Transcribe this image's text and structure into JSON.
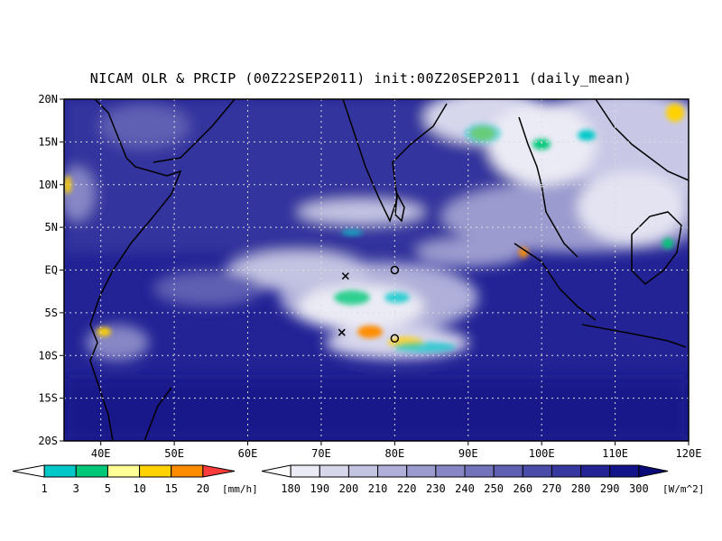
{
  "title": "NICAM OLR & PRCIP (00Z22SEP2011) init:00Z20SEP2011 (daily_mean)",
  "map": {
    "lon_range": [
      35,
      120
    ],
    "lat_range": [
      -20,
      20
    ],
    "lon_ticks": [
      {
        "value": 40,
        "label": "40E"
      },
      {
        "value": 50,
        "label": "50E"
      },
      {
        "value": 60,
        "label": "60E"
      },
      {
        "value": 70,
        "label": "70E"
      },
      {
        "value": 80,
        "label": "80E"
      },
      {
        "value": 90,
        "label": "90E"
      },
      {
        "value": 100,
        "label": "100E"
      },
      {
        "value": 110,
        "label": "110E"
      },
      {
        "value": 120,
        "label": "120E"
      }
    ],
    "lat_ticks": [
      {
        "value": 20,
        "label": "20N"
      },
      {
        "value": 15,
        "label": "15N"
      },
      {
        "value": 10,
        "label": "10N"
      },
      {
        "value": 5,
        "label": "5N"
      },
      {
        "value": 0,
        "label": "EQ"
      },
      {
        "value": -5,
        "label": "5S"
      },
      {
        "value": -10,
        "label": "10S"
      },
      {
        "value": -15,
        "label": "15S"
      },
      {
        "value": -20,
        "label": "20S"
      }
    ],
    "gridlines": true,
    "markers": [
      {
        "type": "cross",
        "lon": 73.3,
        "lat": -0.7
      },
      {
        "type": "cross",
        "lon": 72.8,
        "lat": -7.3
      },
      {
        "type": "circle",
        "lon": 80.0,
        "lat": 0.0
      },
      {
        "type": "circle",
        "lon": 80.0,
        "lat": -8.0
      }
    ]
  },
  "precip_scale": {
    "unit": "[mm/h]",
    "labels": [
      "1",
      "3",
      "5",
      "10",
      "15",
      "20"
    ],
    "colors": [
      "#ffffff",
      "#00c8c8",
      "#00c878",
      "#ffff96",
      "#ffd200",
      "#ff8c00",
      "#ff3c3c"
    ]
  },
  "olr_scale": {
    "unit": "[W/m^2]",
    "labels": [
      "180",
      "190",
      "200",
      "210",
      "220",
      "230",
      "240",
      "250",
      "260",
      "270",
      "280",
      "290",
      "300"
    ],
    "colors": [
      "#ffffff",
      "#ebebf5",
      "#d7d7ec",
      "#c3c3e2",
      "#afafd9",
      "#9b9bcf",
      "#8787c6",
      "#7373bc",
      "#5f5fb3",
      "#4b4ba9",
      "#3737a0",
      "#232396",
      "#14148a",
      "#0a0a78"
    ]
  }
}
